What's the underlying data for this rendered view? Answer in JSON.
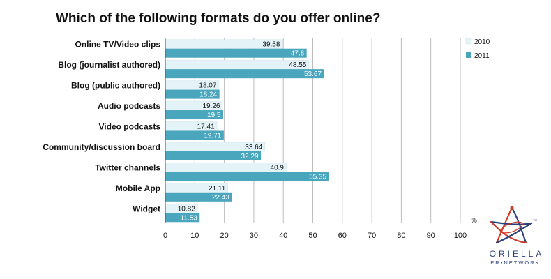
{
  "chart_data": {
    "type": "bar",
    "orientation": "horizontal",
    "title": "Which of the following formats do you offer online?",
    "categories": [
      "Online TV/Video clips",
      "Blog (journalist authored)",
      "Blog (public authored)",
      "Audio podcasts",
      "Video podcasts",
      "Community/discussion board",
      "Twitter channels",
      "Mobile App",
      "Widget"
    ],
    "series": [
      {
        "name": "2010",
        "color": "#e3f3f7",
        "values": [
          39.58,
          48.55,
          18.07,
          19.26,
          17.41,
          33.64,
          40.9,
          21.11,
          10.82
        ]
      },
      {
        "name": "2011",
        "color": "#4aa6bd",
        "values": [
          47.8,
          53.67,
          18.24,
          19.5,
          19.71,
          32.29,
          55.35,
          22.43,
          11.53
        ]
      }
    ],
    "xlim": [
      0,
      100
    ],
    "xticks": [
      0,
      10,
      20,
      30,
      40,
      50,
      60,
      70,
      80,
      90,
      100
    ],
    "xlabel": "%",
    "ylabel": "",
    "grid": true,
    "legend": "top-right"
  },
  "logo": {
    "name": "ORIELLA",
    "sub": "PR•NETWORK",
    "tm": "TM"
  }
}
